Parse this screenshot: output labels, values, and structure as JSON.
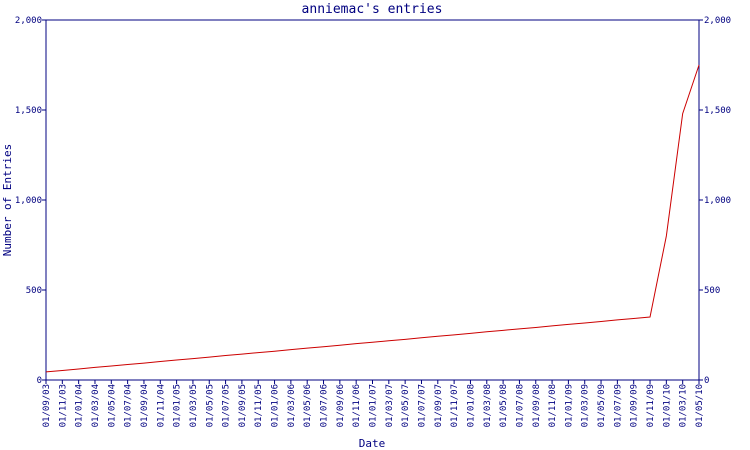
{
  "chart_data": {
    "type": "line",
    "title": "anniemac's entries",
    "x_label": "Date",
    "y_label": "Number of Entries",
    "categories": [
      "01/09/03",
      "01/11/03",
      "01/01/04",
      "01/03/04",
      "01/05/04",
      "01/07/04",
      "01/09/04",
      "01/11/04",
      "01/01/05",
      "01/03/05",
      "01/05/05",
      "01/07/05",
      "01/09/05",
      "01/11/05",
      "01/01/06",
      "01/03/06",
      "01/05/06",
      "01/07/06",
      "01/09/06",
      "01/11/06",
      "01/01/07",
      "01/03/07",
      "01/05/07",
      "01/07/07",
      "01/09/07",
      "01/11/07",
      "01/01/08",
      "01/03/08",
      "01/05/08",
      "01/07/08",
      "01/09/08",
      "01/11/08",
      "01/01/09",
      "01/03/09",
      "01/05/09",
      "01/07/09",
      "01/09/09",
      "01/11/09",
      "01/01/10",
      "01/03/10",
      "01/05/10"
    ],
    "series": [
      {
        "color": "#cc0000",
        "values": [
          45,
          53,
          61,
          70,
          78,
          86,
          94,
          103,
          111,
          119,
          127,
          136,
          144,
          152,
          160,
          169,
          177,
          185,
          193,
          202,
          210,
          218,
          226,
          235,
          243,
          251,
          259,
          268,
          276,
          284,
          292,
          301,
          309,
          317,
          325,
          334,
          342,
          350,
          800,
          1480,
          1750
        ]
      }
    ],
    "ylim": [
      0,
      2000
    ],
    "yticks": [
      0,
      500,
      {
        "value": 1000,
        "label": "1,000"
      },
      {
        "value": 1500,
        "label": "1,500"
      },
      {
        "value": 2000,
        "label": "2,000"
      }
    ]
  }
}
